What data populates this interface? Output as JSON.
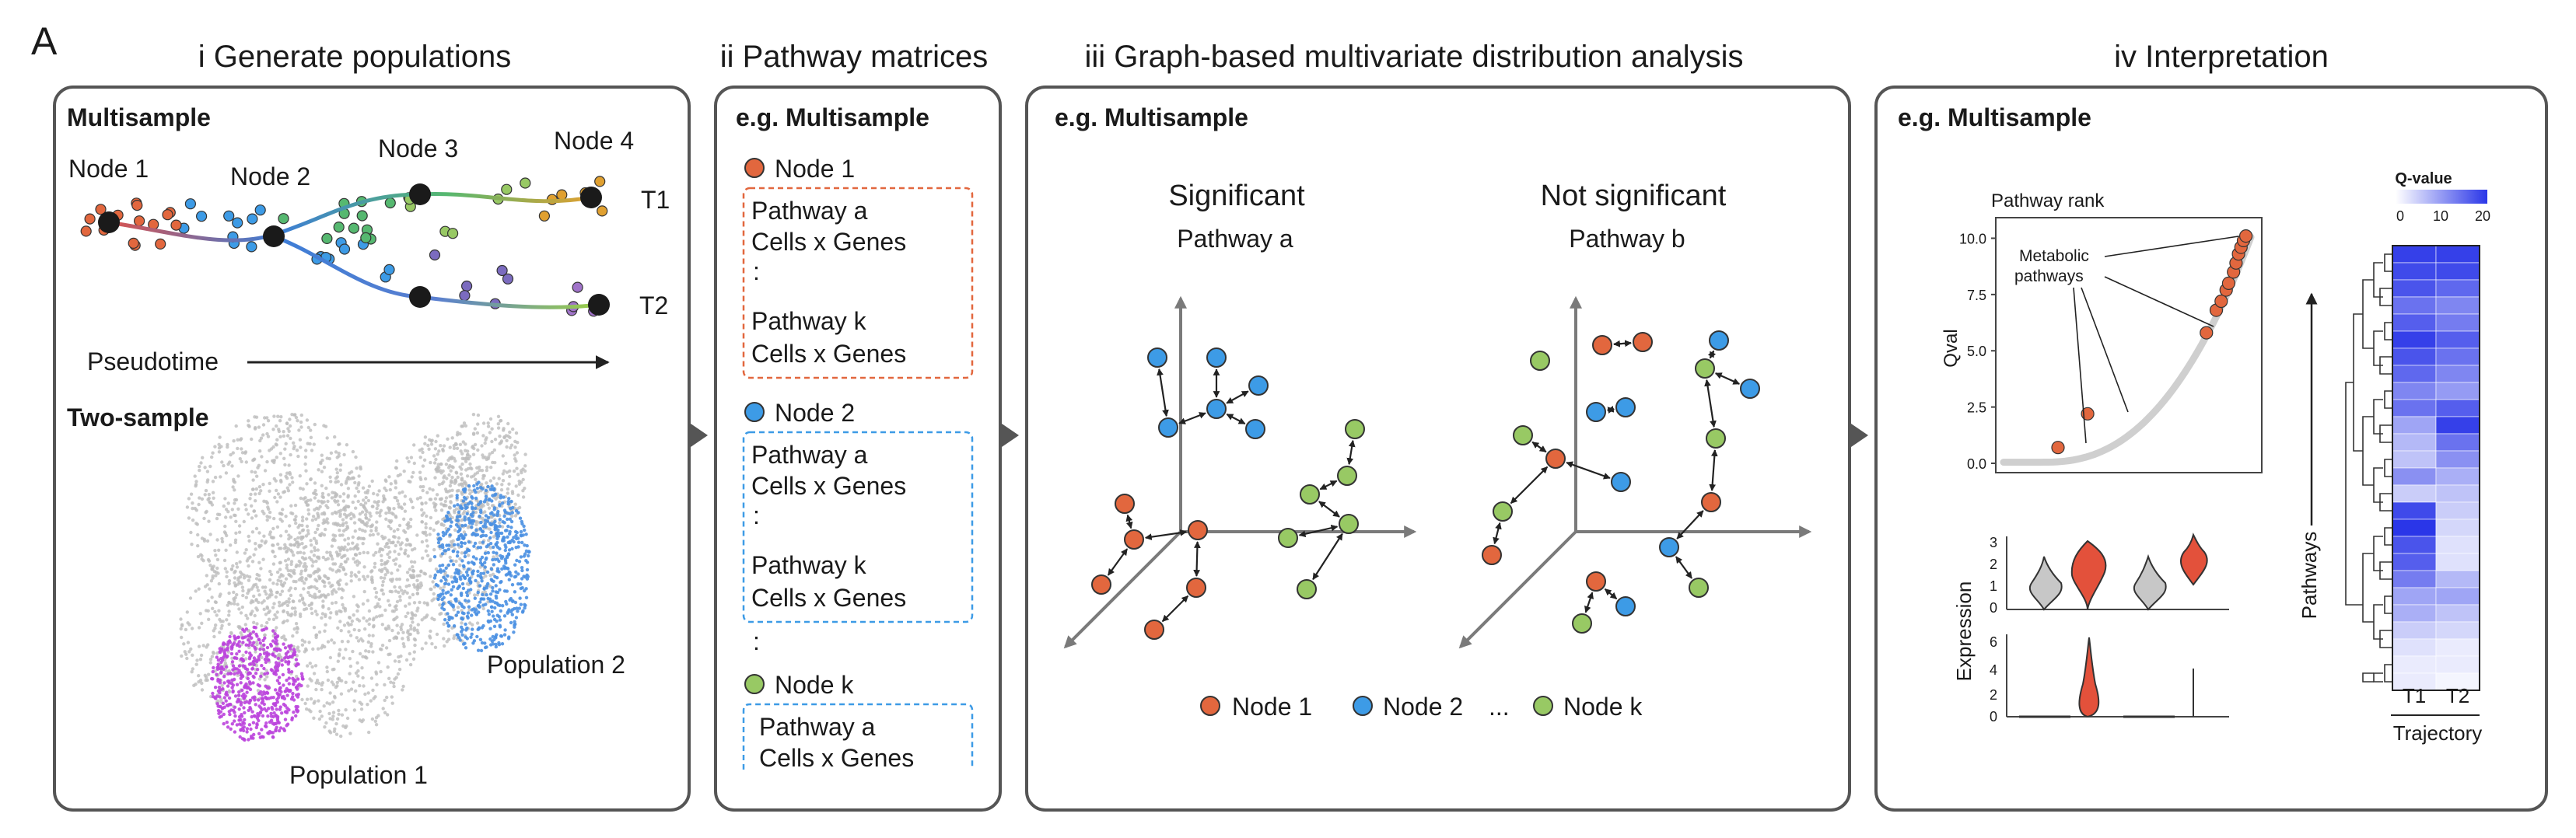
{
  "figure_label": "A",
  "colors": {
    "node1": "#e2673e",
    "node2": "#3d9be6",
    "nodek": "#98c964",
    "significant": "#46a846",
    "not_significant": "#e83324",
    "population": "#bb44dd",
    "population2": "#4a90e2",
    "cloud": "#bdbdbd"
  },
  "panels": {
    "p1": {
      "title": "i Generate populations",
      "multisample": "Multisample",
      "node1": "Node 1",
      "node2": "Node 2",
      "node3": "Node 3",
      "node4": "Node 4",
      "t1": "T1",
      "t2": "T2",
      "pseudotime": "Pseudotime",
      "twosample": "Two-sample",
      "pop1": "Population 1",
      "pop2": "Population 2"
    },
    "p2": {
      "title": "ii Pathway matrices",
      "sub": "e.g. Multisample",
      "node1": "Node 1",
      "node2": "Node 2",
      "nodek": "Node k",
      "pathway_a": "Pathway a",
      "pathway_k": "Pathway k",
      "cells_genes": "Cells x Genes",
      "dots": ":",
      "dots_between": ":"
    },
    "p3": {
      "title": "iii Graph-based multivariate distribution analysis",
      "sub": "e.g. Multisample",
      "significant": "Significant",
      "not_significant": "Not significant",
      "pathway_a": "Pathway a",
      "pathway_b": "Pathway b",
      "legend": {
        "node1": "Node 1",
        "node2": "Node 2",
        "ellipsis": "...",
        "nodek": "Node k"
      }
    },
    "p4": {
      "title": "iv Interpretation",
      "sub": "e.g. Multisample",
      "rank_title": "Pathway rank",
      "qval_label": "Qval",
      "yticks": [
        "10.0",
        "7.5",
        "5.0",
        "2.5",
        "0.0"
      ],
      "metabolic": "Metabolic",
      "pathways_word": "pathways",
      "expression": "Expression",
      "violin_ticks_top": [
        "3",
        "2",
        "1",
        "0"
      ],
      "violin_ticks_bottom": [
        "6",
        "4",
        "2",
        "0"
      ],
      "legend_title": "Q-value",
      "legend_ticks": [
        "0",
        "10",
        "20"
      ],
      "pathways_axis": "Pathways",
      "cols": [
        "T1",
        "T2"
      ],
      "trajectory": "Trajectory"
    }
  },
  "chart_data": [
    {
      "type": "scatter",
      "title": "Pathway rank",
      "xlabel": "",
      "ylabel": "Qval",
      "ylim": [
        0,
        10.5
      ],
      "series": [
        {
          "name": "highlighted (metabolic pathways)",
          "x": [
            0.22,
            0.34,
            0.82,
            0.86,
            0.88,
            0.9,
            0.91,
            0.93,
            0.94,
            0.95,
            0.96,
            0.97,
            0.98
          ],
          "y": [
            0.7,
            2.2,
            5.8,
            6.8,
            7.2,
            7.7,
            8.0,
            8.5,
            8.9,
            9.3,
            9.6,
            9.9,
            10.1
          ]
        }
      ]
    },
    {
      "type": "heatmap",
      "title": "Q-value",
      "columns": [
        "T1",
        "T2"
      ],
      "value_range": [
        0,
        20
      ],
      "values": [
        [
          19,
          19
        ],
        [
          18,
          18
        ],
        [
          17,
          15
        ],
        [
          14,
          12
        ],
        [
          16,
          13
        ],
        [
          19,
          16
        ],
        [
          17,
          14
        ],
        [
          15,
          12
        ],
        [
          12,
          10
        ],
        [
          14,
          16
        ],
        [
          9,
          19
        ],
        [
          7,
          14
        ],
        [
          6,
          11
        ],
        [
          11,
          8
        ],
        [
          5,
          6
        ],
        [
          18,
          5
        ],
        [
          20,
          4
        ],
        [
          17,
          3
        ],
        [
          16,
          3
        ],
        [
          13,
          7
        ],
        [
          9,
          9
        ],
        [
          8,
          6
        ],
        [
          5,
          4
        ],
        [
          3,
          2
        ],
        [
          2,
          2
        ],
        [
          2,
          1
        ]
      ]
    }
  ]
}
